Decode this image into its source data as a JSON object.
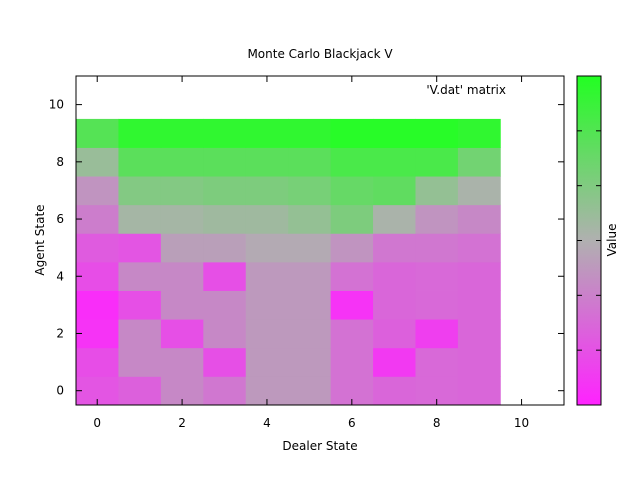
{
  "chart_data": {
    "type": "heatmap",
    "title": "Monte Carlo Blackjack V",
    "xlabel": "Dealer State",
    "ylabel": "Agent State",
    "legend_label": "'V.dat' matrix",
    "colorbar_label": "Value",
    "xlim": [
      -0.5,
      11
    ],
    "ylim": [
      -0.5,
      11
    ],
    "xticks": [
      "0",
      "2",
      "4",
      "6",
      "8",
      "10"
    ],
    "yticks": [
      "0",
      "2",
      "4",
      "6",
      "8",
      "10"
    ],
    "value_range": [
      0,
      1
    ],
    "colormap": {
      "low": "#ff22ff",
      "mid": "#b0b0b0",
      "high": "#22ff22"
    },
    "grid": false,
    "rows": [
      {
        "agent_state": 0,
        "values": [
          0.18,
          0.22,
          0.36,
          0.3,
          0.42,
          0.42,
          0.28,
          0.24,
          0.25,
          0.24
        ]
      },
      {
        "agent_state": 1,
        "values": [
          0.15,
          0.36,
          0.36,
          0.16,
          0.42,
          0.42,
          0.28,
          0.08,
          0.25,
          0.24
        ]
      },
      {
        "agent_state": 2,
        "values": [
          0.06,
          0.36,
          0.16,
          0.36,
          0.42,
          0.42,
          0.28,
          0.22,
          0.1,
          0.24
        ]
      },
      {
        "agent_state": 3,
        "values": [
          0.04,
          0.16,
          0.36,
          0.36,
          0.42,
          0.42,
          0.06,
          0.24,
          0.25,
          0.24
        ]
      },
      {
        "agent_state": 4,
        "values": [
          0.15,
          0.36,
          0.36,
          0.16,
          0.42,
          0.42,
          0.28,
          0.24,
          0.25,
          0.24
        ]
      },
      {
        "agent_state": 5,
        "values": [
          0.2,
          0.18,
          0.44,
          0.44,
          0.48,
          0.48,
          0.4,
          0.3,
          0.3,
          0.28
        ]
      },
      {
        "agent_state": 6,
        "values": [
          0.32,
          0.54,
          0.54,
          0.56,
          0.56,
          0.6,
          0.68,
          0.52,
          0.4,
          0.36
        ]
      },
      {
        "agent_state": 7,
        "values": [
          0.4,
          0.66,
          0.66,
          0.68,
          0.68,
          0.7,
          0.76,
          0.78,
          0.6,
          0.52
        ]
      },
      {
        "agent_state": 8,
        "values": [
          0.58,
          0.8,
          0.8,
          0.8,
          0.8,
          0.8,
          0.86,
          0.86,
          0.86,
          0.72
        ]
      },
      {
        "agent_state": 9,
        "values": [
          0.82,
          0.95,
          0.95,
          0.95,
          0.95,
          0.95,
          0.98,
          0.98,
          0.98,
          0.95
        ]
      }
    ]
  }
}
